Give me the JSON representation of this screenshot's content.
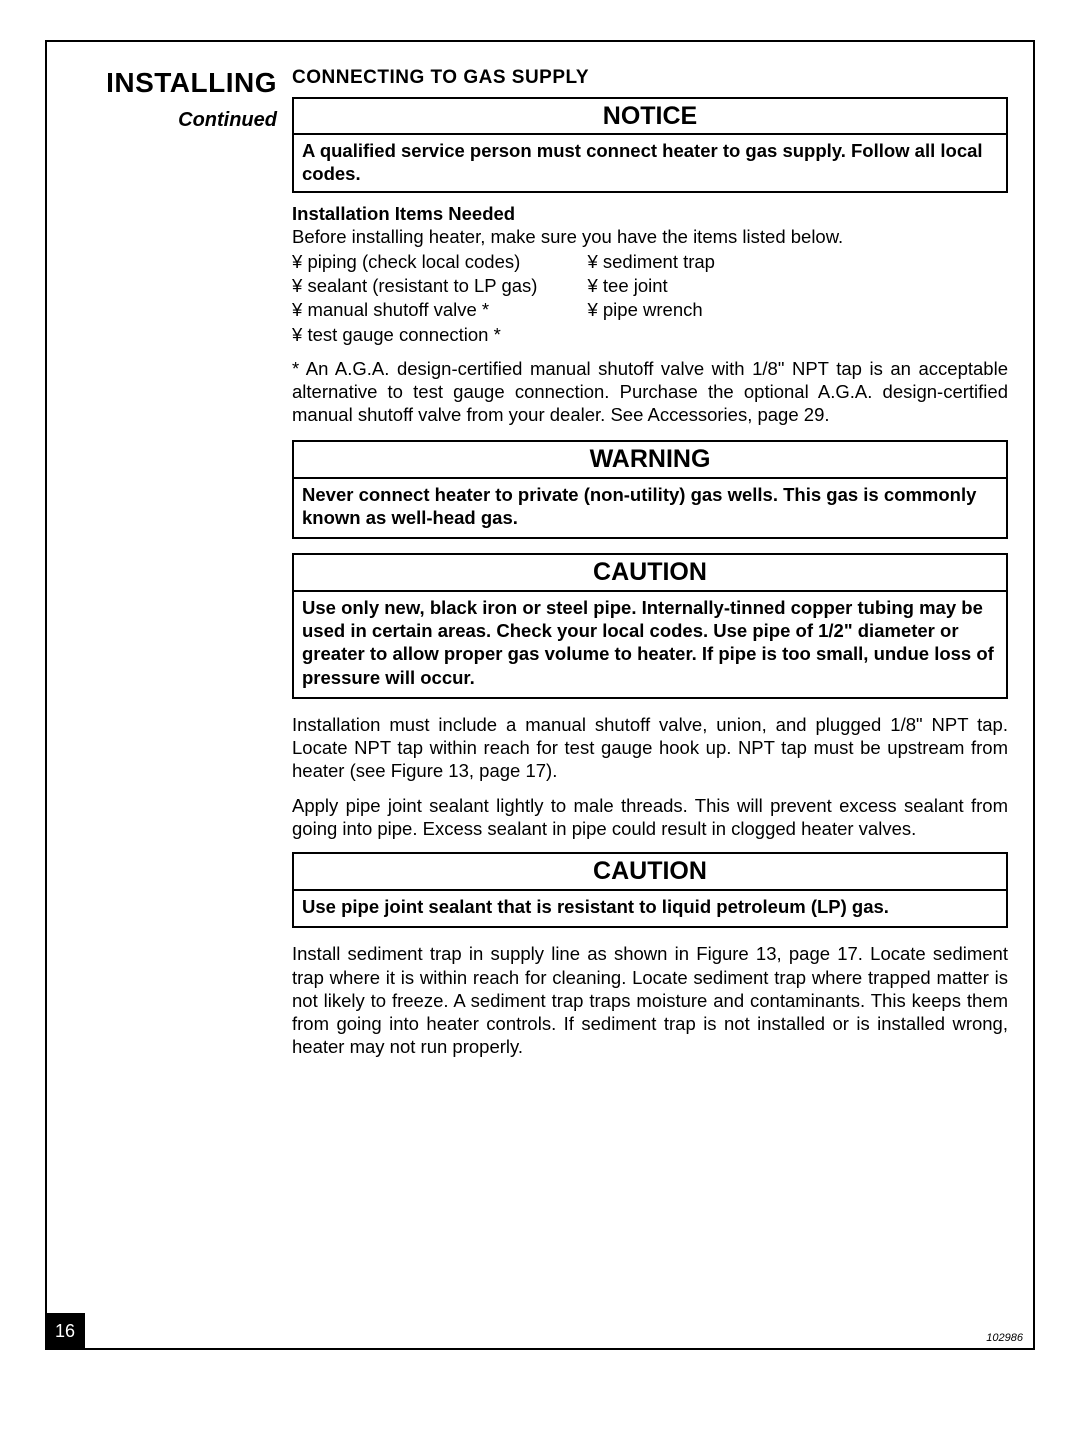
{
  "sidebar": {
    "title": "INSTALLING",
    "subtitle": "Continued"
  },
  "content": {
    "subheader": "CONNECTING TO GAS SUPPLY",
    "notice": {
      "title": "NOTICE",
      "body": "A qualified service person must connect heater to gas supply. Follow all local codes."
    },
    "items_header": "Installation Items Needed",
    "items_intro": "Before installing heater, make sure you have the items listed below.",
    "items_left": [
      "piping (check local codes)",
      "sealant (resistant to LP gas)",
      "manual shutoff valve *",
      "test gauge connection *"
    ],
    "items_right": [
      "sediment trap",
      "tee joint",
      "pipe wrench"
    ],
    "footnote": "* An A.G.A. design-certified manual shutoff valve with 1/8\" NPT tap is an acceptable alternative to test gauge connection. Purchase the optional A.G.A. design-certified manual shutoff valve from your dealer. See Accessories, page 29.",
    "warning": {
      "title": "WARNING",
      "body": "Never connect heater to private (non-utility) gas wells. This gas is commonly known as well-head gas."
    },
    "caution1": {
      "title": "CAUTION",
      "body": "Use only new, black iron or steel pipe. Internally-tinned copper tubing may be used in certain areas. Check your local codes. Use pipe of 1/2\" diameter or greater to allow proper gas volume to heater. If pipe is too small, undue loss of pressure will occur."
    },
    "para1": "Installation must include a manual shutoff valve, union, and plugged 1/8\" NPT tap. Locate NPT tap within reach for test gauge hook up. NPT tap must be upstream from heater (see Figure 13, page 17).",
    "para2": "Apply pipe joint sealant lightly to male threads. This will prevent excess sealant from going into pipe. Excess sealant in pipe could result in clogged heater valves.",
    "caution2": {
      "title": "CAUTION",
      "body": "Use pipe joint sealant that is resistant to liquid petroleum (LP) gas."
    },
    "para3": "Install sediment trap in supply line as shown in Figure 13, page 17. Locate sediment trap where it is within reach for cleaning. Locate sediment trap where trapped matter is not likely to freeze. A sediment trap traps moisture and contaminants. This keeps them from going into heater controls. If sediment trap is not installed or is installed wrong, heater may not run properly."
  },
  "page_number": "16",
  "doc_id": "102986"
}
